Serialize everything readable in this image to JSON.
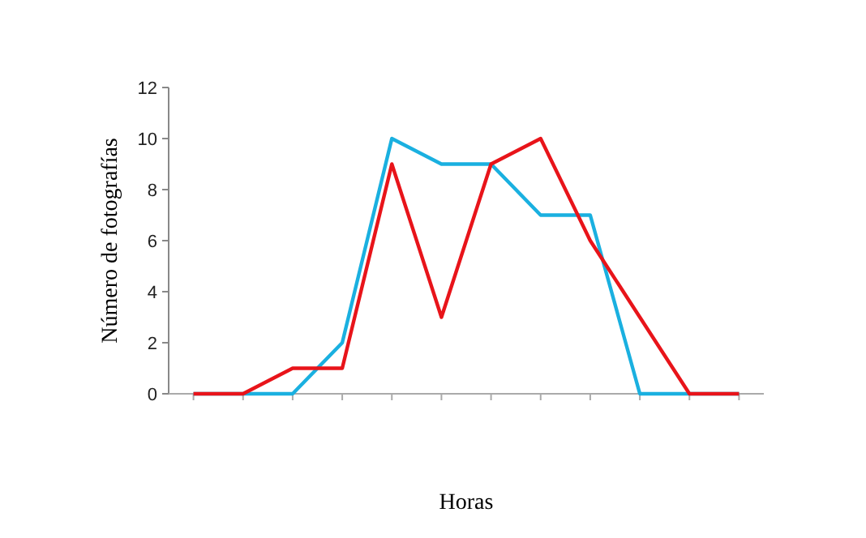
{
  "chart_data": {
    "type": "line",
    "xlabel": "Horas",
    "ylabel": "Número de fotografías",
    "categories": [
      null,
      null,
      null,
      null,
      null,
      null,
      null,
      null,
      null,
      null,
      null,
      null
    ],
    "series": [
      {
        "color": "#1ab0e0",
        "values": [
          0,
          0,
          0,
          2,
          10,
          9,
          9,
          7,
          7,
          0,
          0,
          0
        ]
      },
      {
        "color": "#e8141a",
        "values": [
          0,
          0,
          1,
          1,
          9,
          3,
          9,
          10,
          6,
          3,
          0,
          0
        ]
      }
    ],
    "ylim": [
      0,
      12
    ],
    "yticks": [
      0,
      2,
      4,
      6,
      8,
      10,
      12
    ],
    "grid": false,
    "marker": "none",
    "line_style": "solid"
  }
}
